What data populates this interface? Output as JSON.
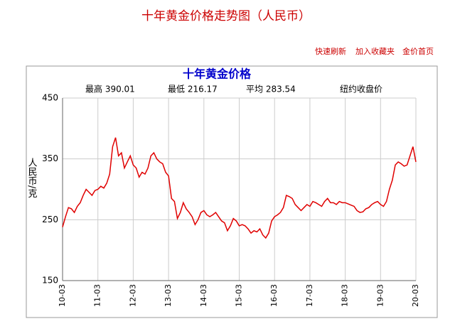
{
  "header": {
    "title": "十年黄金价格走势图（人民币）",
    "links": [
      "快速刷新",
      "加入收藏夹",
      "金价首页"
    ]
  },
  "chart_data": {
    "type": "line",
    "title": "十年黄金价格",
    "stats": [
      "最高 390.01",
      "最低 216.17",
      "平均 283.54"
    ],
    "subtitle": "纽约收盘价",
    "ylabel": "人民币/克",
    "categories": [
      "10-03",
      null,
      null,
      null,
      null,
      null,
      null,
      null,
      null,
      null,
      null,
      null,
      "11-03",
      null,
      null,
      null,
      null,
      null,
      null,
      null,
      null,
      null,
      null,
      null,
      "12-03",
      null,
      null,
      null,
      null,
      null,
      null,
      null,
      null,
      null,
      null,
      null,
      "13-03",
      null,
      null,
      null,
      null,
      null,
      null,
      null,
      null,
      null,
      null,
      null,
      "14-03",
      null,
      null,
      null,
      null,
      null,
      null,
      null,
      null,
      null,
      null,
      null,
      "15-03",
      null,
      null,
      null,
      null,
      null,
      null,
      null,
      null,
      null,
      null,
      null,
      "16-03",
      null,
      null,
      null,
      null,
      null,
      null,
      null,
      null,
      null,
      null,
      null,
      "17-03",
      null,
      null,
      null,
      null,
      null,
      null,
      null,
      null,
      null,
      null,
      null,
      "18-03",
      null,
      null,
      null,
      null,
      null,
      null,
      null,
      null,
      null,
      null,
      null,
      "19-03",
      null,
      null,
      null,
      null,
      null,
      null,
      null,
      null,
      null,
      null,
      null,
      "20-03"
    ],
    "series": [
      {
        "color": "#e00000",
        "values": [
          238,
          255,
          270,
          268,
          262,
          272,
          278,
          290,
          300,
          295,
          290,
          298,
          300,
          305,
          302,
          310,
          325,
          370,
          385,
          355,
          360,
          335,
          345,
          355,
          340,
          335,
          320,
          328,
          325,
          335,
          355,
          360,
          350,
          345,
          342,
          328,
          322,
          285,
          280,
          252,
          262,
          278,
          268,
          262,
          255,
          242,
          250,
          262,
          265,
          258,
          255,
          258,
          262,
          255,
          248,
          245,
          232,
          240,
          252,
          248,
          240,
          242,
          240,
          235,
          228,
          232,
          230,
          235,
          225,
          220,
          228,
          248,
          255,
          258,
          262,
          270,
          290,
          288,
          285,
          275,
          270,
          265,
          270,
          275,
          272,
          280,
          278,
          275,
          272,
          280,
          285,
          278,
          278,
          275,
          280,
          278,
          278,
          276,
          274,
          272,
          265,
          262,
          263,
          268,
          270,
          275,
          278,
          280,
          275,
          272,
          280,
          300,
          315,
          340,
          345,
          342,
          338,
          340,
          355,
          370,
          345
        ]
      }
    ],
    "ylim": [
      150,
      450
    ],
    "yticks": [
      150,
      250,
      350,
      450
    ],
    "grid": true
  }
}
